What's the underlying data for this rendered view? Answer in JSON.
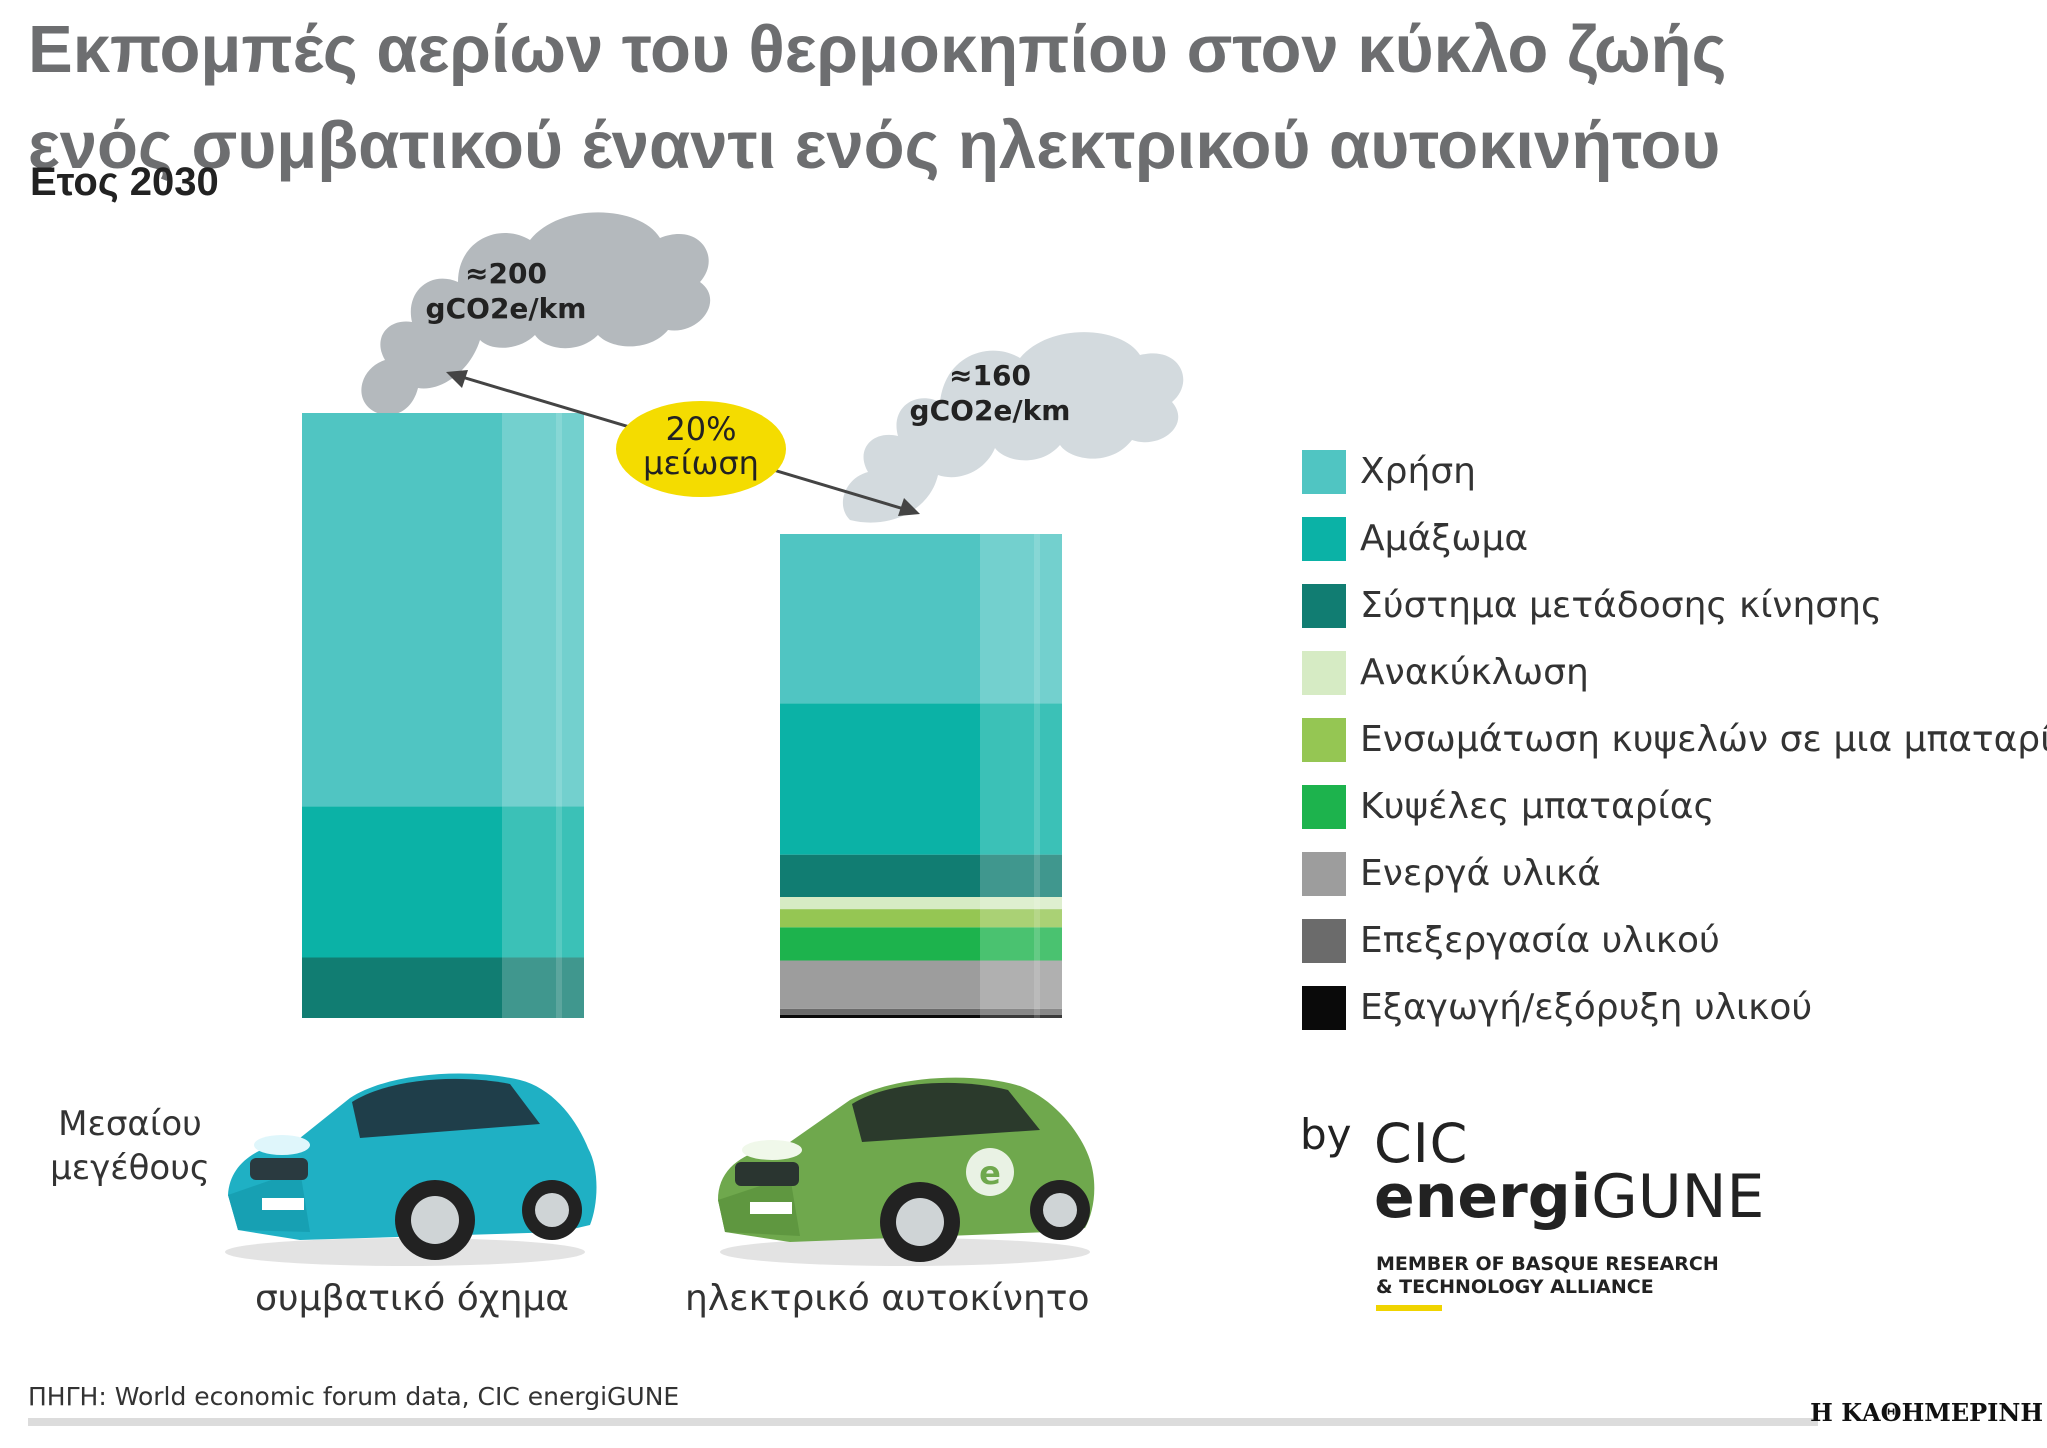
{
  "header": {
    "title": "Εκπομπές αερίων του θερμοκηπίου στον κύκλο ζωής ενός συμβατικού έναντι ενός ηλεκτρικού αυτοκινήτου",
    "subtitle": "Ετος 2030"
  },
  "chart_data": {
    "type": "bar",
    "stacked": true,
    "unit": "gCO2e/km",
    "categories": [
      "συμβατικό όχημα",
      "ηλεκτρικό αυτοκίνητο"
    ],
    "series": [
      {
        "name": "Εξαγωγή/εξόρυξη υλικού",
        "color": "#0a0a0a",
        "values": [
          0,
          1
        ]
      },
      {
        "name": "Επεξεργασία υλικού",
        "color": "#6b6b6b",
        "values": [
          0,
          2
        ]
      },
      {
        "name": "Ενεργά υλικά",
        "color": "#9d9d9d",
        "values": [
          0,
          16
        ]
      },
      {
        "name": "Κυψέλες μπαταρίας",
        "color": "#1db34d",
        "values": [
          0,
          11
        ]
      },
      {
        "name": "Ενσωμάτωση κυψελών σε μια μπαταρία",
        "color": "#95c653",
        "values": [
          0,
          6
        ]
      },
      {
        "name": "Ανακύκλωση",
        "color": "#d6ebc4",
        "values": [
          0,
          4
        ]
      },
      {
        "name": "Σύστημα μετάδοσης κίνησης",
        "color": "#117d72",
        "values": [
          20,
          14
        ]
      },
      {
        "name": "Αμάξωμα",
        "color": "#0bb2a6",
        "values": [
          50,
          50
        ]
      },
      {
        "name": "Χρήση",
        "color": "#50c5c2",
        "values": [
          130,
          56
        ]
      }
    ],
    "totals_labels": [
      {
        "approx": "≈200",
        "unit": "gCO2e/km"
      },
      {
        "approx": "≈160",
        "unit": "gCO2e/km"
      }
    ],
    "annotation": {
      "line1": "20%",
      "line2": "μείωση"
    },
    "ylim": [
      0,
      200
    ]
  },
  "cars": {
    "size_note_line1": "Μεσαίου",
    "size_note_line2": "μεγέθους",
    "ev_badge": "e"
  },
  "logo": {
    "by": "by",
    "cic": "CIC",
    "energi": "energi",
    "gune": "GUNE",
    "member_line1": "MEMBER OF BASQUE RESEARCH",
    "member_line2": "& TECHNOLOGY ALLIANCE"
  },
  "footer": {
    "source": "ΠΗΓΗ: World economic forum data, CIC energiGUNE",
    "brand": "Η ΚΑΘΗΜΕΡΙΝΗ"
  },
  "colors": {
    "highlight": "#f4dc00",
    "smoke_dark": "#b4b9bd",
    "smoke_light": "#d3dade"
  }
}
